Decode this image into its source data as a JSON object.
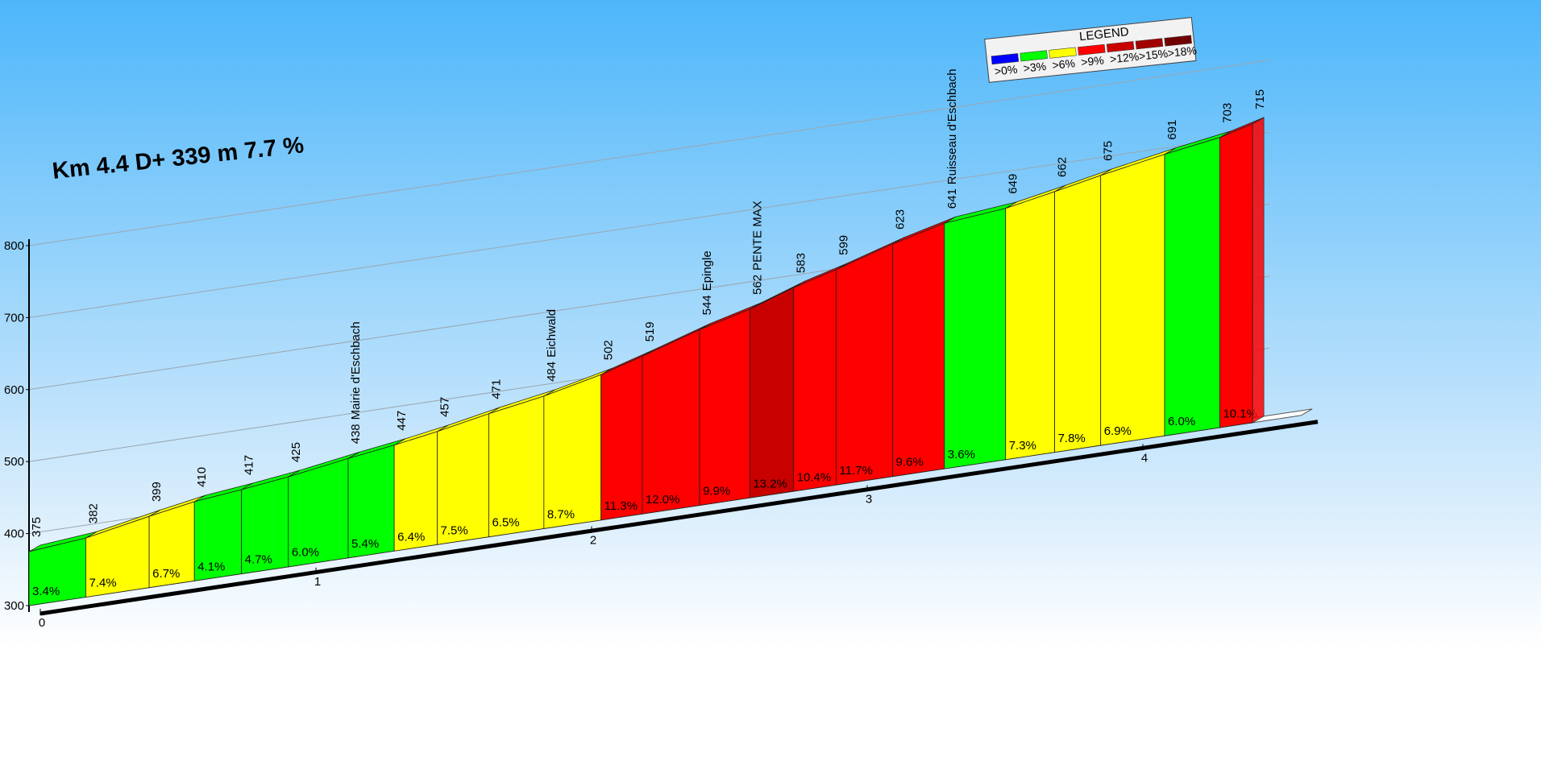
{
  "chart_data": {
    "type": "climb-profile",
    "title": "Km 4.4 D+ 339 m 7.7 %",
    "x": [
      0,
      0.206,
      0.436,
      0.6,
      0.771,
      0.941,
      1.158,
      1.325,
      1.481,
      1.668,
      1.868,
      2.075,
      2.225,
      2.433,
      2.615,
      2.774,
      2.928,
      3.133,
      3.321,
      3.543,
      3.721,
      3.888,
      4.12,
      4.32,
      4.439
    ],
    "values": [
      375,
      382,
      399,
      410,
      417,
      425,
      438,
      447,
      457,
      471,
      484,
      502,
      519,
      544,
      562,
      583,
      599,
      623,
      641,
      649,
      662,
      675,
      691,
      703,
      715
    ],
    "places": [
      null,
      null,
      null,
      null,
      null,
      null,
      "Mairie d'Eschbach",
      null,
      null,
      null,
      "Eichwald",
      null,
      null,
      "Epingle",
      "PENTE MAX",
      null,
      null,
      null,
      "Ruisseau d'Eschbach",
      null,
      null,
      null,
      null,
      null,
      null
    ],
    "gradients": [
      3.4,
      7.4,
      6.7,
      4.1,
      4.7,
      6.0,
      5.4,
      6.4,
      7.5,
      6.5,
      8.7,
      11.3,
      12.0,
      9.9,
      13.2,
      10.4,
      11.7,
      9.6,
      3.6,
      7.3,
      7.8,
      6.9,
      6.0,
      10.1
    ],
    "gradient_labels": [
      "3.4%",
      "7.4%",
      "6.7%",
      "4.1%",
      "4.7%",
      "6.0%",
      "5.4%",
      "6.4%",
      "7.5%",
      "6.5%",
      "8.7%",
      "11.3%",
      "12.0%",
      "9.9%",
      "13.2%",
      "10.4%",
      "11.7%",
      "9.6%",
      "3.6%",
      "7.3%",
      "7.8%",
      "6.9%",
      "6.0%",
      "10.1%"
    ],
    "xlim": [
      0,
      4.5
    ],
    "xticks": [
      0,
      1,
      2,
      3,
      4
    ],
    "ylim": [
      300,
      800
    ],
    "yticks": [
      300,
      400,
      500,
      600,
      700,
      800
    ],
    "grid": true,
    "legend": {
      "title": "LEGEND",
      "items": [
        {
          "threshold": 0,
          "label": ">0%",
          "color": "#0000ff"
        },
        {
          "threshold": 3,
          "label": ">3%",
          "color": "#00ff00"
        },
        {
          "threshold": 6,
          "label": ">6%",
          "color": "#ffff00"
        },
        {
          "threshold": 9,
          "label": ">9%",
          "color": "#ff0000"
        },
        {
          "threshold": 12,
          "label": ">12%",
          "color": "#c80000"
        },
        {
          "threshold": 15,
          "label": ">15%",
          "color": "#a00000"
        },
        {
          "threshold": 18,
          "label": ">18%",
          "color": "#700000"
        }
      ]
    }
  }
}
